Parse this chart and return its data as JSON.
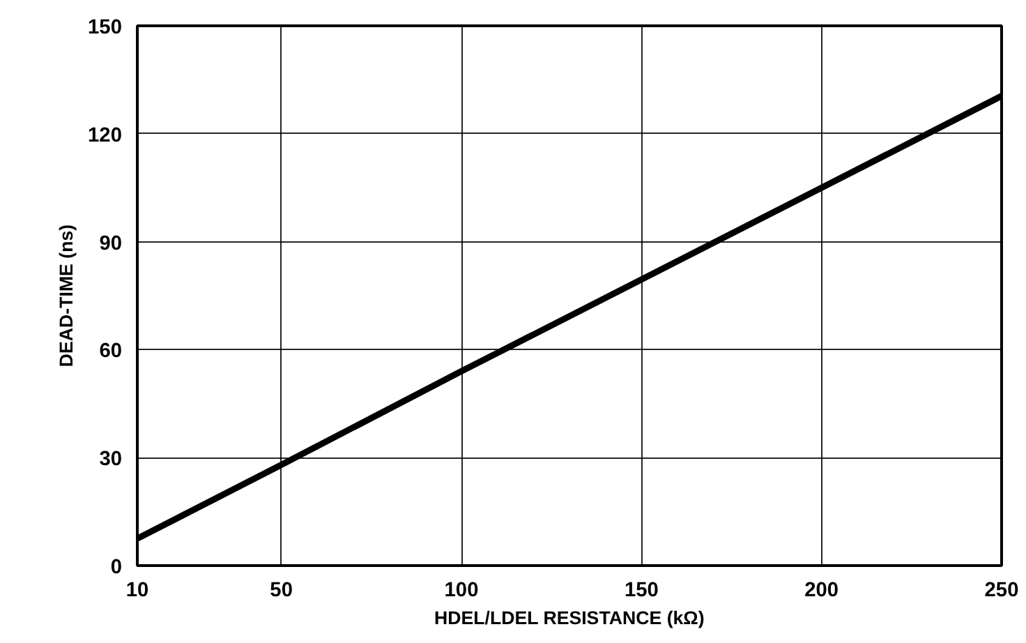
{
  "chart_data": {
    "type": "line",
    "xlabel": "HDEL/LDEL RESISTANCE (kΩ)",
    "ylabel": "DEAD-TIME (ns)",
    "x": [
      10,
      50,
      100,
      150,
      200,
      250
    ],
    "series": [
      {
        "color": "#000000",
        "values": [
          7.5,
          28,
          54,
          79.5,
          105,
          130.5
        ]
      }
    ],
    "xlim": [
      10,
      250
    ],
    "ylim": [
      0,
      150
    ],
    "xticks": [
      10,
      50,
      100,
      150,
      200,
      250
    ],
    "yticks": [
      0,
      30,
      60,
      90,
      120,
      150
    ],
    "grid": true,
    "marker": "none",
    "line_style": "solid"
  }
}
